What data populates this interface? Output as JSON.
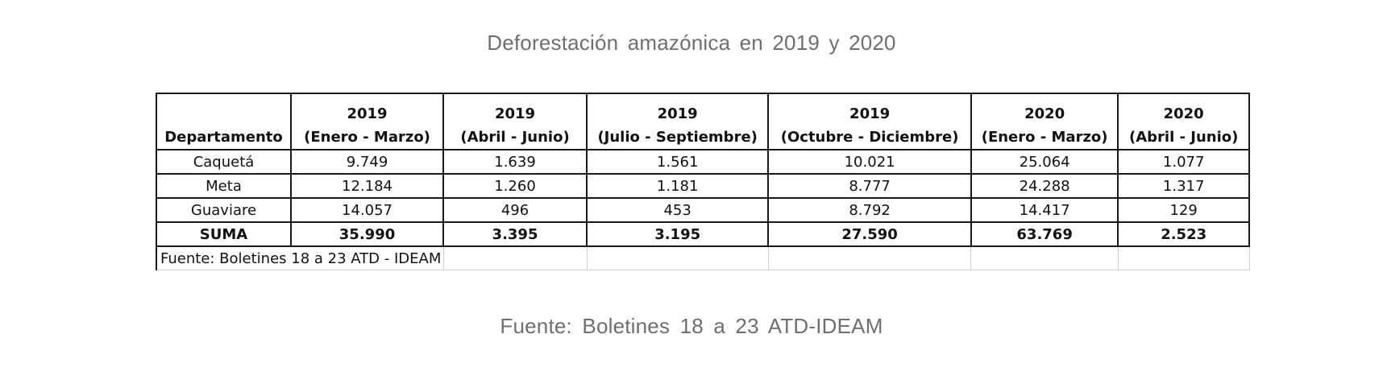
{
  "title": "Deforestación amazónica en 2019 y 2020",
  "source_caption": "Fuente: Boletines 18 a 23 ATD-IDEAM",
  "table_note": "Fuente: Boletines 18 a 23 ATD - IDEAM",
  "chart_data": {
    "type": "table",
    "title": "Deforestación amazónica en 2019 y 2020",
    "header_first": "Departamento",
    "columns": [
      {
        "year": "2019",
        "period": "(Enero - Marzo)"
      },
      {
        "year": "2019",
        "period": "(Abril - Junio)"
      },
      {
        "year": "2019",
        "period": "(Julio - Septiembre)"
      },
      {
        "year": "2019",
        "period": "(Octubre - Diciembre)"
      },
      {
        "year": "2020",
        "period": "(Enero - Marzo)"
      },
      {
        "year": "2020",
        "period": "(Abril - Junio)"
      }
    ],
    "rows": [
      {
        "label": "Caquetá",
        "values": [
          "9.749",
          "1.639",
          "1.561",
          "10.021",
          "25.064",
          "1.077"
        ]
      },
      {
        "label": "Meta",
        "values": [
          "12.184",
          "1.260",
          "1.181",
          "8.777",
          "24.288",
          "1.317"
        ]
      },
      {
        "label": "Guaviare",
        "values": [
          "14.057",
          "496",
          "453",
          "8.792",
          "14.417",
          "129"
        ]
      },
      {
        "label": "SUMA",
        "values": [
          "35.990",
          "3.395",
          "3.195",
          "27.590",
          "63.769",
          "2.523"
        ],
        "bold": true
      }
    ]
  }
}
